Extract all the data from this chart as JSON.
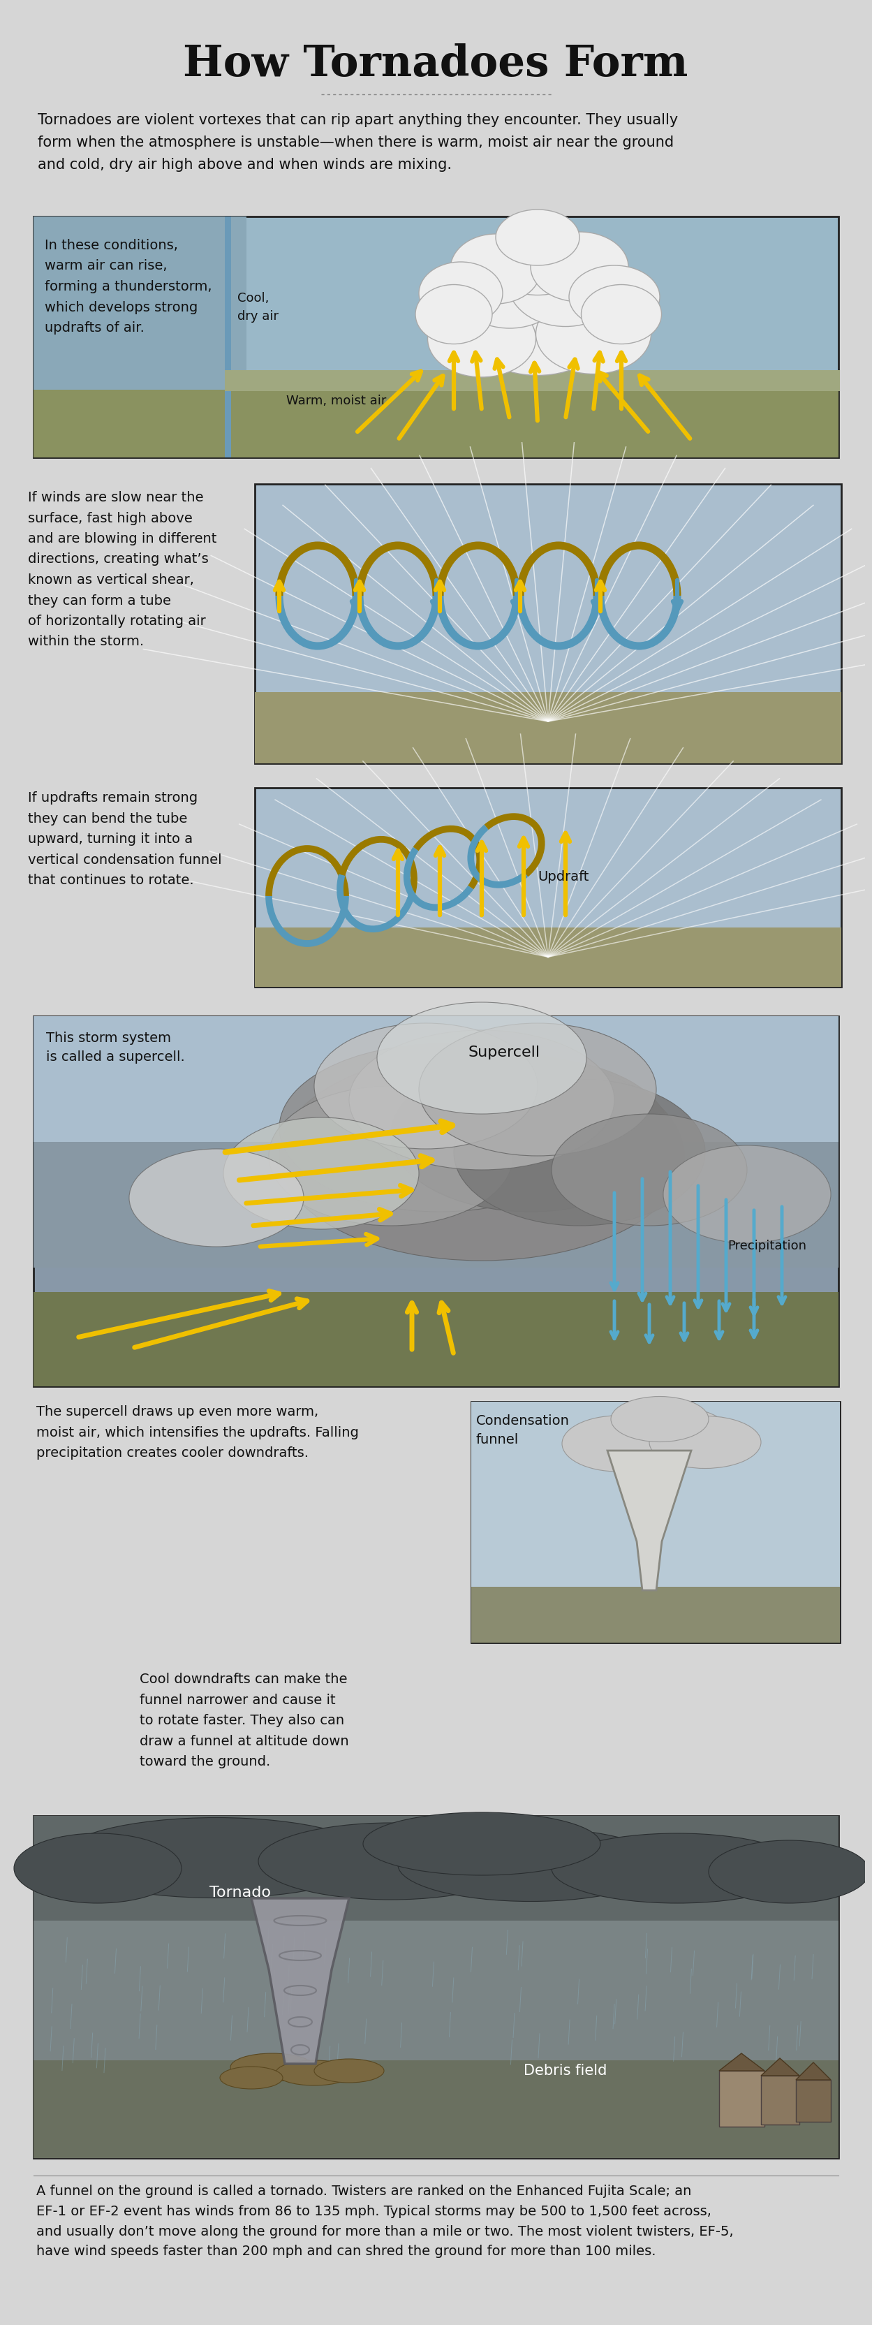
{
  "title": "How Tornadoes Form",
  "bg_color": "#d6d6d6",
  "title_font_size": 44,
  "title_color": "#111111",
  "intro_text": "Tornadoes are violent vortexes that can rip apart anything they encounter. They usually\nform when the atmosphere is unstable—when there is warm, moist air near the ground\nand cold, dry air high above and when winds are mixing.",
  "panel1_caption": "In these conditions,\nwarm air can rise,\nforming a thunderstorm,\nwhich develops strong\nupdrafts of air.",
  "panel1_cool_dry": "Cool,\ndry air",
  "panel1_warm_moist": "Warm, moist air",
  "panel2_caption": "If winds are slow near the\nsurface, fast high above\nand are blowing in different\ndirections, creating what’s\nknown as vertical shear,\nthey can form a tube\nof horizontally rotating air\nwithin the storm.",
  "panel3_caption": "If updrafts remain strong\nthey can bend the tube\nupward, turning it into a\nvertical condensation funnel\nthat continues to rotate.",
  "panel3_updraft": "Updraft",
  "panel4_caption": "This storm system\nis called a supercell.",
  "panel4_supercell": "Supercell",
  "panel4_precip": "Precipitation",
  "panel5_caption": "The supercell draws up even more warm,\nmoist air, which intensifies the updrafts. Falling\nprecipitation creates cooler downdrafts.",
  "panel5_funnel": "Condensation\nfunnel",
  "panel6_caption": "Cool downdrafts can make the\nfunnel narrower and cause it\nto rotate faster. They also can\ndraw a funnel at altitude down\ntoward the ground.",
  "panel7_tornado": "Tornado",
  "panel7_debris": "Debris field",
  "footer_text": "A funnel on the ground is called a tornado. Twisters are ranked on the Enhanced Fujita Scale; an\nEF-1 or EF-2 event has winds from 86 to 135 mph. Typical storms may be 500 to 1,500 feet across,\nand usually don’t move along the ground for more than a mile or two. The most violent twisters, EF-5,\nhave wind speeds faster than 200 mph and can shred the ground for more than 100 miles.",
  "yellow": "#f0c000",
  "blue_arrow": "#5599bb",
  "teal_arrow": "#55aacc",
  "panel_border": "#222222",
  "panel1_sky": "#9ab8c8",
  "panel23_sky": "#aabece",
  "panel4_sky_top": "#8899a8",
  "panel4_sky_mid": "#9aacb8",
  "panel7_sky": "#8a9898",
  "ground_color": "#8a9060",
  "ground_p4": "#707850",
  "ground_p7": "#6a7050"
}
